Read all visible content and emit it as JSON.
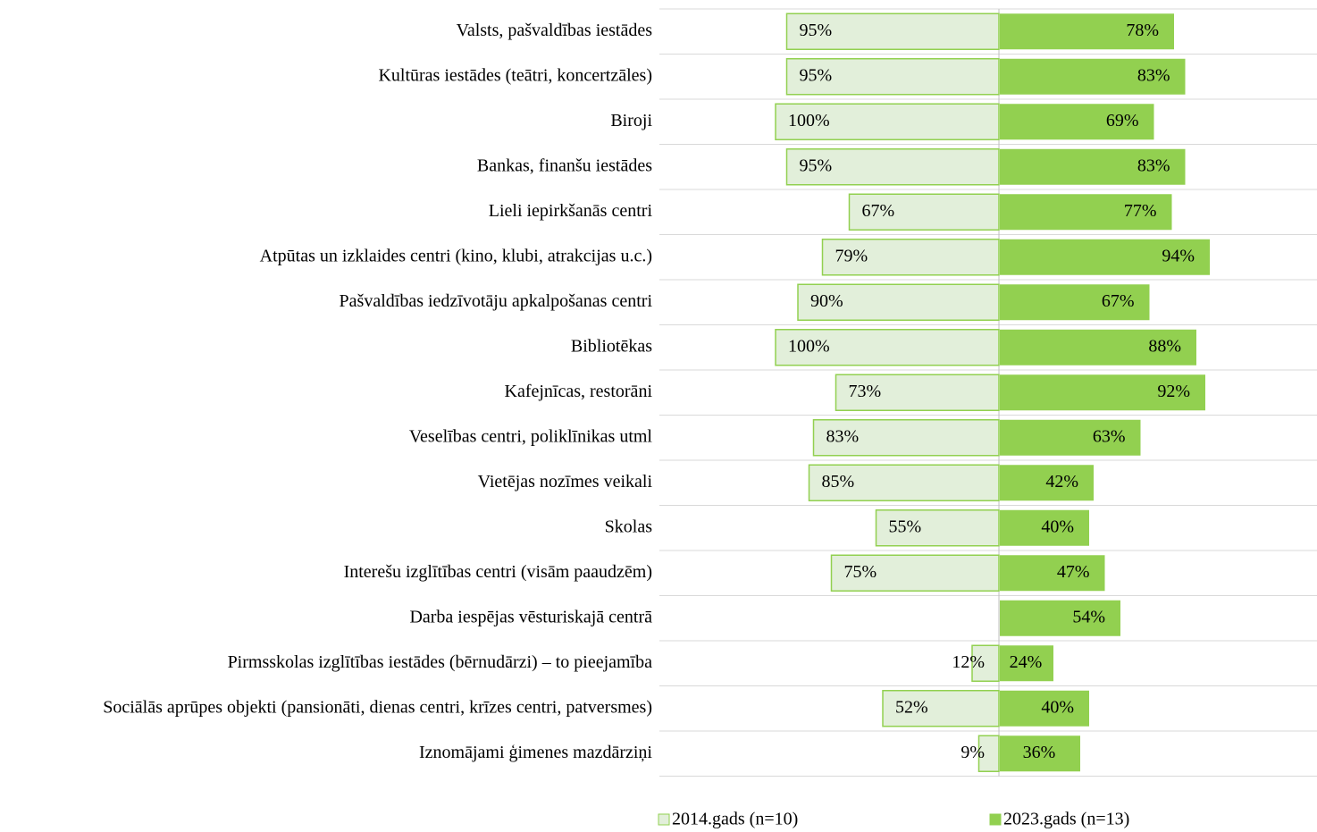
{
  "chart_data": {
    "type": "diverging-bar",
    "categories": [
      "Valsts, pašvaldības iestādes",
      "Kultūras iestādes (teātri, koncertzāles)",
      "Biroji",
      "Bankas, finanšu iestādes",
      "Lieli iepirkšanās centri",
      "Atpūtas un izklaides centri (kino, klubi, atrakcijas u.c.)",
      "Pašvaldības iedzīvotāju apkalpošanas centri",
      "Bibliotēkas",
      "Kafejnīcas, restorāni",
      "Veselības centri, poliklīnikas utml",
      "Vietējas nozīmes veikali",
      "Skolas",
      "Interešu izglītības centri (visām paaudzēm)",
      "Darba iespējas vēsturiskajā centrā",
      "Pirmsskolas izglītības iestādes (bērnudārzi) – to pieejamība",
      "Sociālās aprūpes objekti (pansionāti, dienas centri, krīzes centri, patversmes)",
      "Iznomājami ģimenes mazdārziņi"
    ],
    "series": [
      {
        "name": "2014.gads (n=10)",
        "color": "#e2efda",
        "edge": "#92d050",
        "values": [
          95,
          95,
          100,
          95,
          67,
          79,
          90,
          100,
          73,
          83,
          85,
          55,
          75,
          null,
          12,
          52,
          9
        ],
        "value_labels": [
          "95%",
          "95%",
          "100%",
          "95%",
          "67%",
          "79%",
          "90%",
          "100%",
          "73%",
          "83%",
          "85%",
          "55%",
          "75%",
          null,
          "12%",
          "52%",
          "9%"
        ]
      },
      {
        "name": "2023.gads (n=13)",
        "color": "#92d050",
        "edge": "#92d050",
        "values": [
          78,
          83,
          69,
          83,
          77,
          94,
          67,
          88,
          92,
          63,
          42,
          40,
          47,
          54,
          24,
          40,
          36
        ],
        "value_labels": [
          "78%",
          "83%",
          "69%",
          "83%",
          "77%",
          "94%",
          "67%",
          "88%",
          "92%",
          "63%",
          "42%",
          "40%",
          "47%",
          "54%",
          "24%",
          "40%",
          "36%"
        ]
      }
    ]
  }
}
